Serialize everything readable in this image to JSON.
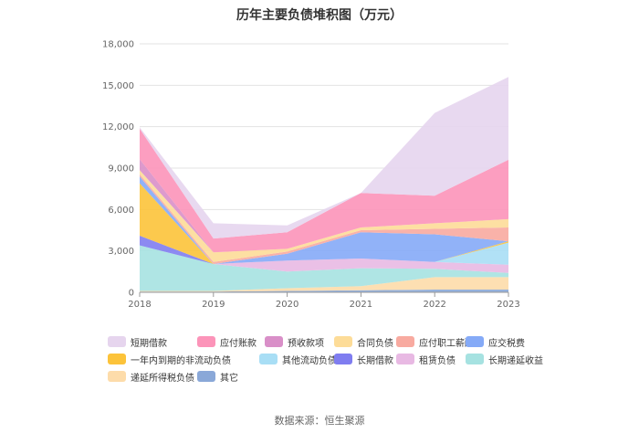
{
  "chart_data": {
    "type": "area",
    "stacked": true,
    "title": "历年主要负债堆积图（万元）",
    "x": [
      "2018",
      "2019",
      "2020",
      "2021",
      "2022",
      "2023"
    ],
    "y_ticks": [
      "0",
      "3,000",
      "6,000",
      "9,000",
      "12,000",
      "15,000",
      "18,000"
    ],
    "ylim": [
      0,
      18000
    ],
    "grid": true,
    "legend_position": "bottom",
    "series": [
      {
        "name": "短期借款",
        "color": "#e6d5ee",
        "values": [
          100,
          1100,
          500,
          0,
          6000,
          6000
        ]
      },
      {
        "name": "应付账款",
        "color": "#fc94b9",
        "values": [
          2200,
          1000,
          1200,
          2500,
          2000,
          4300
        ]
      },
      {
        "name": "预收款项",
        "color": "#d98fc8",
        "values": [
          800,
          0,
          0,
          0,
          0,
          0
        ]
      },
      {
        "name": "合同负债",
        "color": "#fddc98",
        "values": [
          300,
          700,
          200,
          200,
          400,
          600
        ]
      },
      {
        "name": "应付职工薪酬",
        "color": "#f8aaa0",
        "values": [
          150,
          150,
          150,
          150,
          400,
          1000
        ]
      },
      {
        "name": "应交税费",
        "color": "#85aaf7",
        "values": [
          500,
          0,
          500,
          1900,
          2000,
          0
        ]
      },
      {
        "name": "一年内到期的非流动负债",
        "color": "#fcc33a",
        "values": [
          3800,
          0,
          0,
          0,
          0,
          100
        ]
      },
      {
        "name": "其他流动负债",
        "color": "#a8def5",
        "values": [
          0,
          0,
          0,
          0,
          0,
          1600
        ]
      },
      {
        "name": "长期借款",
        "color": "#7f7df0",
        "values": [
          700,
          0,
          0,
          0,
          0,
          0
        ]
      },
      {
        "name": "租赁负债",
        "color": "#e8b9e3",
        "values": [
          0,
          0,
          800,
          700,
          500,
          600
        ]
      },
      {
        "name": "长期递延收益",
        "color": "#a6e2e1",
        "values": [
          3300,
          1950,
          1200,
          1300,
          600,
          300
        ]
      },
      {
        "name": "递延所得税负债",
        "color": "#fddcaa",
        "values": [
          50,
          50,
          200,
          300,
          900,
          900
        ]
      },
      {
        "name": "其它",
        "color": "#8aa8d8",
        "values": [
          50,
          50,
          100,
          150,
          200,
          200
        ]
      }
    ]
  },
  "source_note": "数据来源：恒生聚源"
}
